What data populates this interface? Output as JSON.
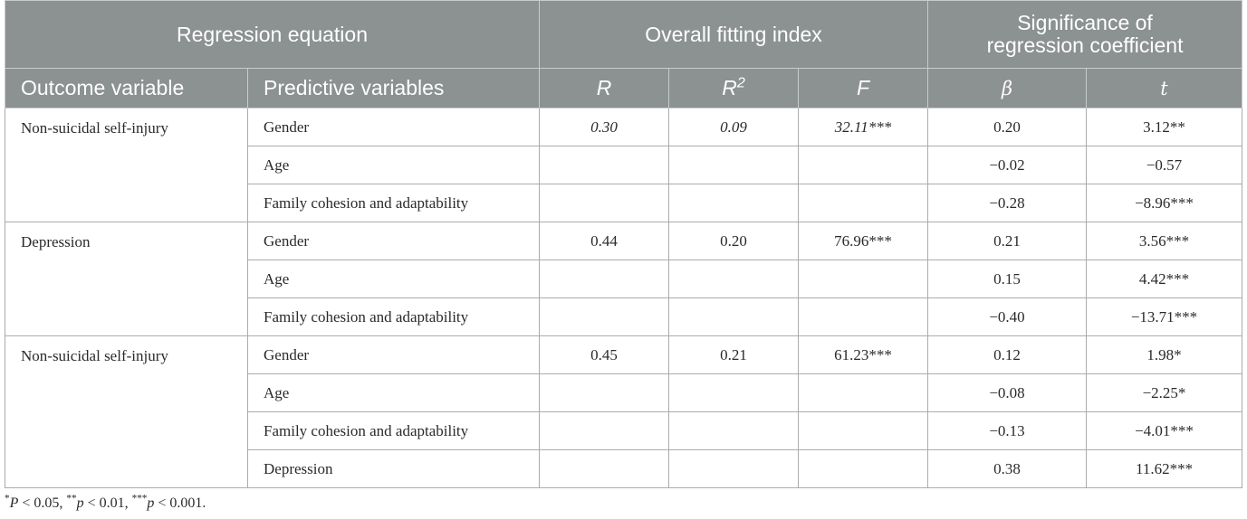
{
  "header": {
    "group1": "Regression equation",
    "group2": "Overall fitting index",
    "group3_line1": "Significance of",
    "group3_line2": "regression coefficient",
    "col_outcome": "Outcome variable",
    "col_predictive": "Predictive variables",
    "col_R": "R",
    "col_R2_base": "R",
    "col_R2_sup": "2",
    "col_F": "F",
    "col_beta": "β",
    "col_t": "t"
  },
  "blocks": [
    {
      "outcome": "Non-suicidal self-injury",
      "R": "0.30",
      "R2": "0.09",
      "F": "32.11***",
      "rows": [
        {
          "predictor": "Gender",
          "beta": "0.20",
          "t": "3.12**"
        },
        {
          "predictor": "Age",
          "beta": "−0.02",
          "t": "−0.57"
        },
        {
          "predictor": "Family cohesion and adaptability",
          "beta": "−0.28",
          "t": "−8.96***"
        }
      ]
    },
    {
      "outcome": "Depression",
      "R": "0.44",
      "R2": "0.20",
      "F": "76.96***",
      "rows": [
        {
          "predictor": "Gender",
          "beta": "0.21",
          "t": "3.56***"
        },
        {
          "predictor": "Age",
          "beta": "0.15",
          "t": "4.42***"
        },
        {
          "predictor": "Family cohesion and adaptability",
          "beta": "−0.40",
          "t": "−13.71***"
        }
      ]
    },
    {
      "outcome": "Non-suicidal self-injury",
      "R": "0.45",
      "R2": "0.21",
      "F": "61.23***",
      "rows": [
        {
          "predictor": "Gender",
          "beta": "0.12",
          "t": "1.98*"
        },
        {
          "predictor": "Age",
          "beta": "−0.08",
          "t": "−2.25*"
        },
        {
          "predictor": "Family cohesion and adaptability",
          "beta": "−0.13",
          "t": "−4.01***"
        },
        {
          "predictor": "Depression",
          "beta": "0.38",
          "t": "11.62***"
        }
      ]
    }
  ],
  "footnote": {
    "s1": "*",
    "p1": "P",
    "v1": " < 0.05, ",
    "s2": "**",
    "p2": "p",
    "v2": " < 0.01, ",
    "s3": "***",
    "p3": "p",
    "v3": " < 0.001."
  }
}
